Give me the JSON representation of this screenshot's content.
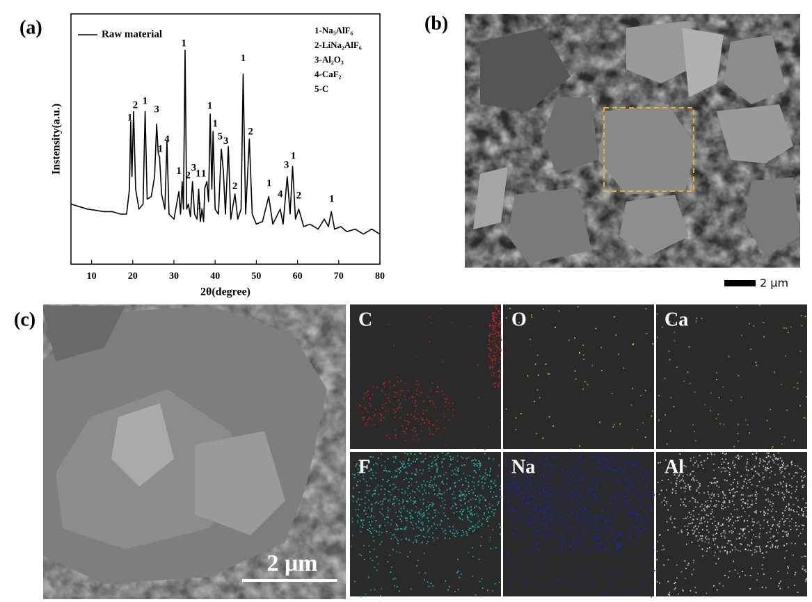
{
  "panel_labels": [
    "(a)",
    "(b)",
    "(c)"
  ],
  "chart_data": {
    "type": "line",
    "x_label": "2θ(degree)",
    "y_label": "Instensity(a.u.)",
    "x": [
      5,
      7,
      9,
      11,
      13,
      15,
      17,
      18.5,
      19.2,
      19.5,
      19.8,
      20.2,
      20.7,
      21.5,
      22.5,
      23,
      23.5,
      24.5,
      25.3,
      25.8,
      26.2,
      26.5,
      27,
      27.8,
      28.3,
      28.8,
      30,
      31.2,
      31.6,
      32,
      32.3,
      32.7,
      33.1,
      33.5,
      34,
      34.5,
      35,
      35.6,
      36,
      36.4,
      36.8,
      37.2,
      37.5,
      38,
      38.4,
      38.8,
      39.2,
      39.5,
      40,
      40.8,
      41.5,
      42,
      42.5,
      43.2,
      43.8,
      44.8,
      45.5,
      46.3,
      46.8,
      47.4,
      48.3,
      49,
      50,
      51.5,
      53,
      54,
      55.8,
      56.5,
      57.5,
      58.2,
      58.8,
      59.5,
      60.3,
      61.5,
      63,
      65,
      66.5,
      67.5,
      68.2,
      69,
      70.5,
      72,
      74,
      76,
      78,
      80
    ],
    "series": [
      {
        "name": "Raw material",
        "color": "#000000",
        "values": [
          24,
          23,
          22,
          21.5,
          21,
          21,
          20,
          20,
          30,
          57,
          35,
          61,
          30,
          22,
          24,
          61,
          26,
          27,
          35,
          56,
          44,
          43,
          28,
          22,
          49,
          20,
          18,
          29,
          20,
          33,
          22,
          85.5,
          22,
          24,
          19,
          33,
          20,
          18,
          30,
          17,
          22,
          17,
          30.5,
          33,
          25,
          60,
          30,
          53,
          22,
          20,
          46,
          37,
          20,
          47,
          18,
          28,
          18,
          22,
          76,
          20,
          50,
          20,
          16,
          17,
          27,
          16,
          22,
          16,
          35,
          20,
          39,
          18,
          22,
          15,
          16,
          14,
          18,
          15,
          21,
          14,
          15,
          13,
          14,
          12,
          14,
          12
        ]
      }
    ],
    "xlim": [
      5,
      80
    ],
    "xticks": [
      10,
      20,
      30,
      40,
      50,
      60,
      70,
      80
    ],
    "ylim": [
      0,
      100
    ],
    "legend": "upper left",
    "annotations": [
      {
        "text": "1",
        "x": 19.3,
        "y": 58.3
      },
      {
        "text": "2",
        "x": 20.6,
        "y": 63.3
      },
      {
        "text": "1",
        "x": 23,
        "y": 65
      },
      {
        "text": "3",
        "x": 25.8,
        "y": 61.7
      },
      {
        "text": "1",
        "x": 26.7,
        "y": 45.8
      },
      {
        "text": "4",
        "x": 28.3,
        "y": 49.7
      },
      {
        "text": "1",
        "x": 31.2,
        "y": 37
      },
      {
        "text": "1",
        "x": 32.4,
        "y": 88
      },
      {
        "text": "2",
        "x": 33.4,
        "y": 35.3
      },
      {
        "text": "3",
        "x": 34.8,
        "y": 38.3
      },
      {
        "text": "1",
        "x": 35.9,
        "y": 36
      },
      {
        "text": "1",
        "x": 37.2,
        "y": 36
      },
      {
        "text": "1",
        "x": 36.2,
        "y": 23
      },
      {
        "text": "1",
        "x": 38.7,
        "y": 63
      },
      {
        "text": "1",
        "x": 40,
        "y": 56
      },
      {
        "text": "5",
        "x": 41.2,
        "y": 50.8
      },
      {
        "text": "3",
        "x": 42.6,
        "y": 49
      },
      {
        "text": "2",
        "x": 44.8,
        "y": 31
      },
      {
        "text": "1",
        "x": 46.8,
        "y": 82
      },
      {
        "text": "2",
        "x": 48.6,
        "y": 52.8
      },
      {
        "text": "1",
        "x": 53.1,
        "y": 32
      },
      {
        "text": "4",
        "x": 55.8,
        "y": 27.8
      },
      {
        "text": "3",
        "x": 57.3,
        "y": 39.4
      },
      {
        "text": "1",
        "x": 59,
        "y": 43
      },
      {
        "text": "2",
        "x": 60.3,
        "y": 27.2
      },
      {
        "text": "1",
        "x": 68.3,
        "y": 25.8
      }
    ],
    "phase_key": [
      "1-Na₃AlF₆",
      "2-LiNa₂AlF₆",
      "3-Al₂O₃",
      "4-CaF₂",
      "5-C"
    ]
  },
  "sem_b": {
    "scale_bar": "2 μm"
  },
  "sem_c": {
    "scale_bar": "2 μm"
  },
  "eds_maps": {
    "labels": [
      "C",
      "O",
      "Ca",
      "F",
      "Na",
      "Al"
    ],
    "colors": [
      "#e02020",
      "#d8d820",
      "#b8c020",
      "#20c8c8",
      "#2020e0",
      "#e0e0e0"
    ]
  }
}
